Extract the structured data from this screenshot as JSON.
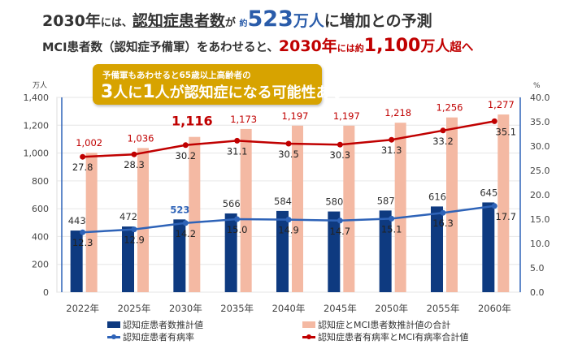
{
  "header": {
    "line1": {
      "a": "2030年",
      "b": "には、",
      "c": "認知症患者数",
      "d": "が ",
      "e": "約",
      "f": "523",
      "g": "万人",
      "h": "に増加との予測"
    },
    "line2": {
      "a": "MCI患者数（認知症予備軍）をあわせると、",
      "b": "2030年",
      "c": "には約",
      "d": "1,100",
      "e": "万人",
      "f": "超へ"
    }
  },
  "callout": {
    "line1": "予備軍もあわせると65歳以上高齢者の",
    "n1": "3",
    "p1": "人に",
    "n2": "1",
    "p2": "人が認知症になる可能性あり"
  },
  "colors": {
    "dementia_bar": "#0e3a80",
    "total_bar": "#f4b9a3",
    "dementia_rate": "#2e63b8",
    "total_rate": "#c00000",
    "callout": "#d7a300"
  },
  "chart_data": {
    "type": "bar+line",
    "categories": [
      "2022年",
      "2025年",
      "2030年",
      "2035年",
      "2040年",
      "2045年",
      "2050年",
      "2055年",
      "2060年"
    ],
    "y_left": {
      "unit": "万人",
      "ylim": [
        0,
        1400
      ],
      "ticks": [
        "0",
        "200",
        "400",
        "600",
        "800",
        "1,000",
        "1,200",
        "1,400"
      ]
    },
    "y_right": {
      "unit": "%",
      "ylim": [
        0,
        40
      ],
      "ticks": [
        "0.0",
        "5.0",
        "10.0",
        "15.0",
        "20.0",
        "25.0",
        "30.0",
        "35.0",
        "40.0"
      ]
    },
    "grid": true,
    "legend_position": "bottom",
    "series": [
      {
        "name": "認知症患者数推計値",
        "type": "bar",
        "axis": "left",
        "values": [
          443,
          472,
          523,
          566,
          584,
          580,
          587,
          616,
          645
        ],
        "labels": [
          "443",
          "472",
          "523",
          "566",
          "584",
          "580",
          "587",
          "616",
          "645"
        ]
      },
      {
        "name": "認知症とMCI患者数推計値の合計",
        "type": "bar",
        "axis": "left",
        "values": [
          1002,
          1036,
          1116,
          1173,
          1197,
          1197,
          1218,
          1256,
          1277
        ],
        "labels": [
          "1,002",
          "1,036",
          "1,116",
          "1,173",
          "1,197",
          "1,197",
          "1,218",
          "1,256",
          "1,277"
        ]
      },
      {
        "name": "認知症患者有病率",
        "type": "line",
        "axis": "right",
        "values": [
          12.3,
          12.9,
          14.2,
          15.0,
          14.9,
          14.7,
          15.1,
          16.3,
          17.7
        ]
      },
      {
        "name": "認知症患者有病率とMCI有病率合計値",
        "type": "line",
        "axis": "right",
        "values": [
          27.8,
          28.3,
          30.2,
          31.1,
          30.5,
          30.3,
          31.3,
          33.2,
          35.1
        ]
      }
    ]
  }
}
